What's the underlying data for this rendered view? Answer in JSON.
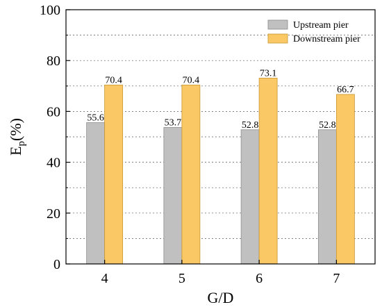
{
  "chart_data": {
    "type": "bar",
    "categories": [
      "4",
      "5",
      "6",
      "7"
    ],
    "series": [
      {
        "name": "Upstream pier",
        "values": [
          55.6,
          53.7,
          52.8,
          52.8
        ],
        "color": "#c0c0c0"
      },
      {
        "name": "Downstream pier",
        "values": [
          70.4,
          70.4,
          73.1,
          66.7
        ],
        "color": "#fac864"
      }
    ],
    "xlabel": "G/D",
    "ylabel_main": "E",
    "ylabel_sub": "p",
    "ylabel_suffix": "(%)",
    "ylim": [
      0,
      100
    ],
    "yticks": [
      "0",
      "20",
      "40",
      "60",
      "80",
      "100"
    ],
    "grid": "horizontal dashed",
    "legend_position": "top-right",
    "data_labels": true
  }
}
